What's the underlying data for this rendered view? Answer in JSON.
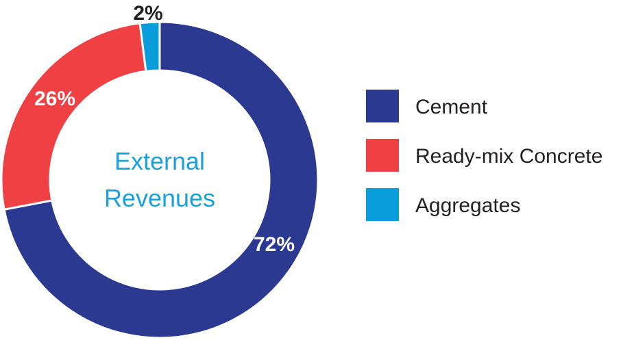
{
  "chart_data": {
    "type": "pie",
    "center_label": [
      "External",
      "Revenues"
    ],
    "categories": [
      "Cement",
      "Ready-mix Concrete",
      "Aggregates"
    ],
    "values": [
      72,
      26,
      2
    ],
    "labels": [
      "72%",
      "26%",
      "2%"
    ],
    "colors": [
      "#2b3990",
      "#ef4044",
      "#0a9ddb"
    ],
    "label_colors": [
      "#ffffff",
      "#ffffff",
      "#231f20"
    ],
    "center_label_color": "#1aa1dc",
    "legend_position": "right",
    "donut": true
  }
}
